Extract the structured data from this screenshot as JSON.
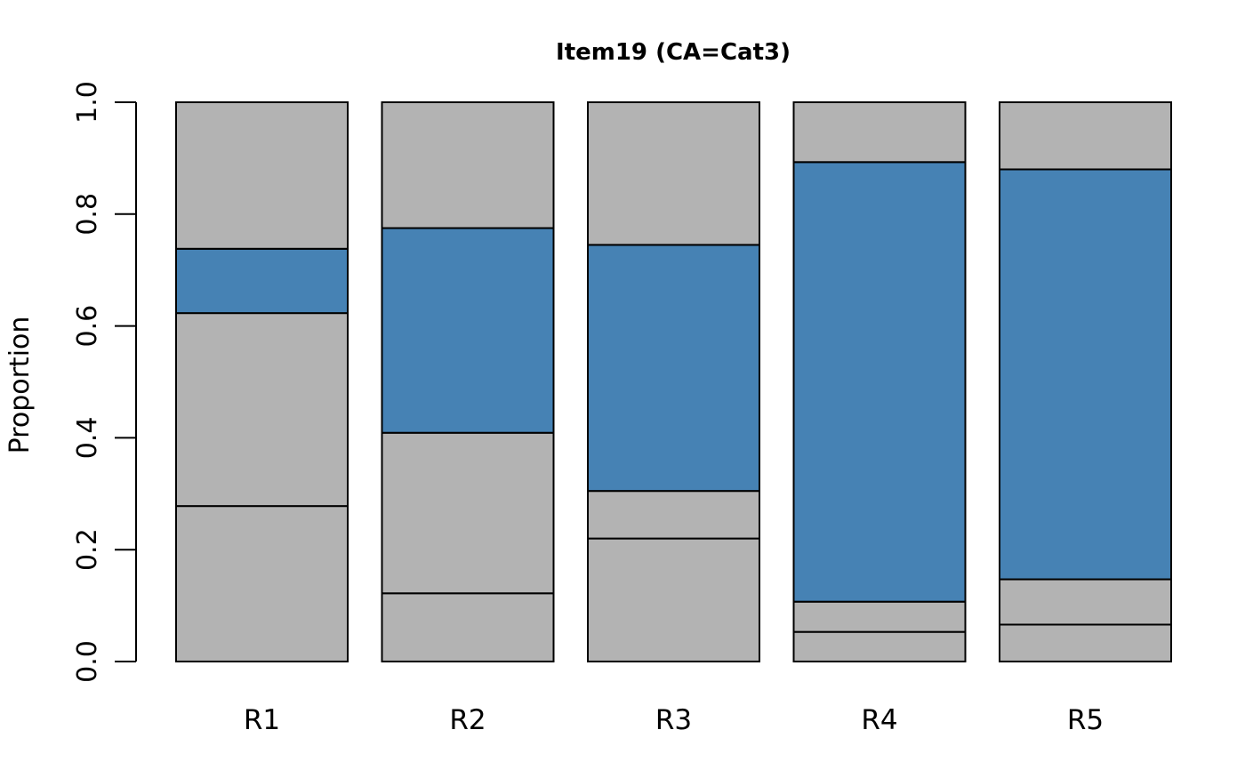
{
  "chart_data": {
    "type": "bar",
    "stacked": true,
    "normalized": true,
    "title": "Item19 (CA=Cat3)",
    "xlabel": "",
    "ylabel": "Proportion",
    "ylim": [
      0,
      1
    ],
    "yticks": [
      "0.0",
      "0.2",
      "0.4",
      "0.6",
      "0.8",
      "1.0"
    ],
    "categories": [
      "R1",
      "R2",
      "R3",
      "R4",
      "R5"
    ],
    "correct_category": "Cat3",
    "series": [
      {
        "values": [
          0.278,
          0.122,
          0.22,
          0.053,
          0.066
        ],
        "color": "#b3b3b3"
      },
      {
        "values": [
          0.345,
          0.287,
          0.085,
          0.054,
          0.081
        ],
        "color": "#b3b3b3"
      },
      {
        "values": [
          0.115,
          0.366,
          0.44,
          0.786,
          0.733
        ],
        "color": "#4682b4"
      },
      {
        "values": [
          0.262,
          0.225,
          0.255,
          0.107,
          0.12
        ],
        "color": "#b3b3b3"
      }
    ],
    "grid": false,
    "legend": "none"
  }
}
